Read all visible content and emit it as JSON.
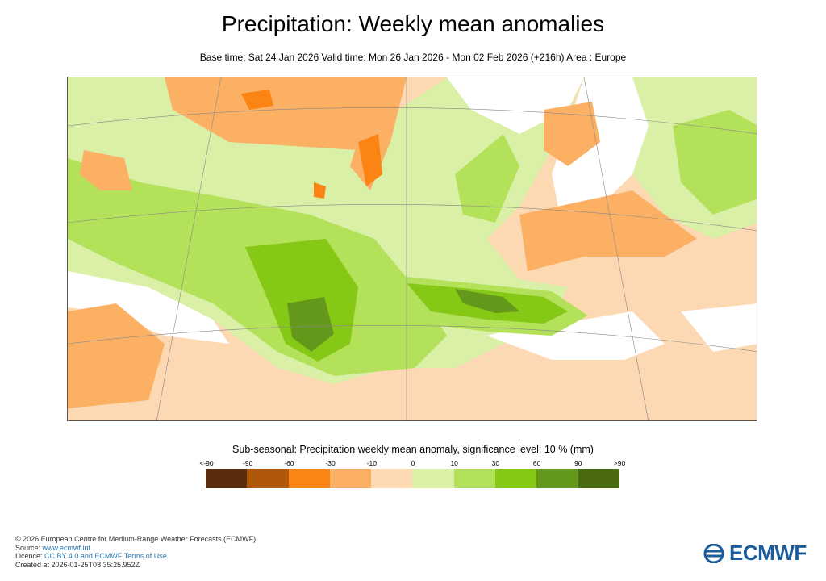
{
  "header": {
    "title": "Precipitation: Weekly mean anomalies",
    "subtitle": "Base time: Sat 24 Jan 2026 Valid time: Mon 26 Jan 2026 - Mon 02 Feb 2026 (+216h) Area : Europe"
  },
  "legend": {
    "title": "Sub-seasonal: Precipitation weekly mean anomaly, significance level: 10 % (mm)",
    "ticks": [
      "<-90",
      "-90",
      "-60",
      "-30",
      "-10",
      "0",
      "10",
      "30",
      "60",
      "90",
      ">90"
    ],
    "colors": [
      "#5a2d0c",
      "#b0570a",
      "#fb8414",
      "#fbb064",
      "#fcd9b2",
      "#d9f0a6",
      "#b4e15a",
      "#86c816",
      "#64981a",
      "#4b6b10"
    ]
  },
  "footer": {
    "copyright": "© 2026 European Centre for Medium-Range Weather Forecasts (ECMWF)",
    "source_label": "Source: ",
    "source_link": "www.ecmwf.int",
    "licence_label": "Licence: ",
    "licence_link": "CC BY 4.0 and ECMWF Terms of Use",
    "created": "Created at 2026-01-25T08:35:25.952Z"
  },
  "logo": {
    "text": "ECMWF",
    "color": "#1b5d9c"
  }
}
